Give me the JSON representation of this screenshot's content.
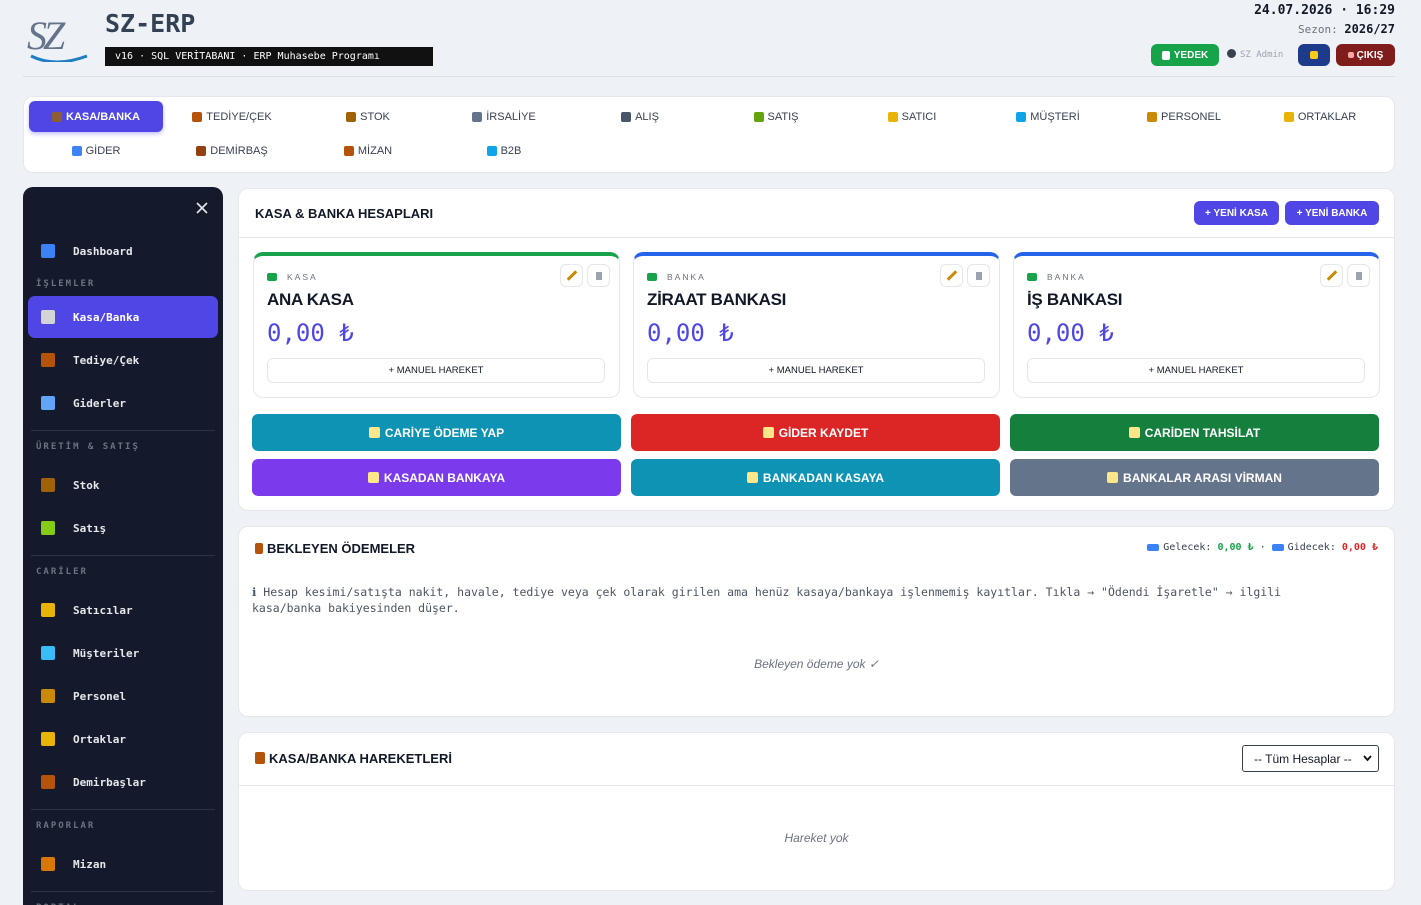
{
  "header": {
    "logo": "SZ",
    "title": "SZ-ERP",
    "subtitle": "v16 · SQL VERİTABANI · ERP Muhasebe Programı",
    "datetime": "24.07.2026 · 16:29",
    "season_label": "Sezon:",
    "season": "2026/27",
    "backup": "YEDEK",
    "user": "SZ Admin",
    "logout": "ÇIKIŞ"
  },
  "nav": {
    "tabs": [
      {
        "label": "KASA/BANKA",
        "active": true,
        "icon": "#8b5e34"
      },
      {
        "label": "TEDİYE/ÇEK",
        "icon": "#b45309"
      },
      {
        "label": "STOK",
        "icon": "#a16207"
      },
      {
        "label": "İRSALİYE",
        "icon": "#64748b"
      },
      {
        "label": "ALIŞ",
        "icon": "#475569"
      },
      {
        "label": "SATIŞ",
        "icon": "#65a30d"
      },
      {
        "label": "SATICI",
        "icon": "#eab308"
      },
      {
        "label": "MÜŞTERİ",
        "icon": "#0ea5e9"
      },
      {
        "label": "PERSONEL",
        "icon": "#ca8a04"
      },
      {
        "label": "ORTAKLAR",
        "icon": "#eab308"
      },
      {
        "label": "GİDER",
        "icon": "#3b82f6"
      },
      {
        "label": "DEMİRBAŞ",
        "icon": "#92400e"
      },
      {
        "label": "MİZAN",
        "icon": "#b45309"
      },
      {
        "label": "B2B",
        "icon": "#0ea5e9"
      }
    ]
  },
  "sidebar": {
    "top": {
      "label": "Dashboard",
      "icon": "#3b82f6"
    },
    "sections": [
      {
        "title": "İŞLEMLER",
        "items": [
          {
            "label": "Kasa/Banka",
            "active": true,
            "icon": "#d4d4d8"
          },
          {
            "label": "Tediye/Çek",
            "icon": "#b45309"
          },
          {
            "label": "Giderler",
            "icon": "#60a5fa"
          }
        ]
      },
      {
        "title": "ÜRETİM & SATIŞ",
        "items": [
          {
            "label": "Stok",
            "icon": "#a16207"
          },
          {
            "label": "Satış",
            "icon": "#84cc16"
          }
        ]
      },
      {
        "title": "CARİLER",
        "items": [
          {
            "label": "Satıcılar",
            "icon": "#eab308"
          },
          {
            "label": "Müşteriler",
            "icon": "#38bdf8"
          },
          {
            "label": "Personel",
            "icon": "#ca8a04"
          },
          {
            "label": "Ortaklar",
            "icon": "#eab308"
          },
          {
            "label": "Demirbaşlar",
            "icon": "#b45309"
          }
        ]
      },
      {
        "title": "RAPORLAR",
        "items": [
          {
            "label": "Mizan",
            "icon": "#d97706"
          }
        ]
      },
      {
        "title": "PORTAL"
      }
    ]
  },
  "accounts_panel": {
    "title": "KASA & BANKA HESAPLARI",
    "new_cash": "+ YENİ KASA",
    "new_bank": "+ YENİ BANKA",
    "accounts": [
      {
        "type": "KASA",
        "name": "ANA KASA",
        "balance": "0,00 ₺",
        "color": "#16a34a",
        "action": "+ MANUEL HAREKET"
      },
      {
        "type": "BANKA",
        "name": "ZİRAAT BANKASI",
        "balance": "0,00 ₺",
        "color": "#2563eb",
        "action": "+ MANUEL HAREKET"
      },
      {
        "type": "BANKA",
        "name": "İŞ BANKASI",
        "balance": "0,00 ₺",
        "color": "#2563eb",
        "action": "+ MANUEL HAREKET"
      }
    ],
    "actions": [
      {
        "label": "CARİYE ÖDEME YAP",
        "color": "#0e93b4"
      },
      {
        "label": "GİDER KAYDET",
        "color": "#dc2626"
      },
      {
        "label": "CARİDEN TAHSİLAT",
        "color": "#15803d"
      },
      {
        "label": "KASADAN BANKAYA",
        "color": "#7c3aed"
      },
      {
        "label": "BANKADAN KASAYA",
        "color": "#0e93b4"
      },
      {
        "label": "BANKALAR ARASI VİRMAN",
        "color": "#64748b"
      }
    ]
  },
  "pending": {
    "title": "BEKLEYEN ÖDEMELER",
    "incoming_label": "Gelecek:",
    "incoming": "0,00 ₺",
    "separator": "·",
    "outgoing_label": "Gidecek:",
    "outgoing": "0,00 ₺",
    "info": "ℹ Hesap kesimi/satışta nakit, havale, tediye veya çek olarak girilen ama henüz kasaya/bankaya işlenmemiş kayıtlar. Tıkla → \"Ödendi İşaretle\" → ilgili kasa/banka bakiyesinden düşer.",
    "empty": "Bekleyen ödeme yok ✓"
  },
  "movements": {
    "title": "KASA/BANKA HAREKETLERİ",
    "filter": "-- Tüm Hesaplar --",
    "empty": "Hareket yok"
  }
}
